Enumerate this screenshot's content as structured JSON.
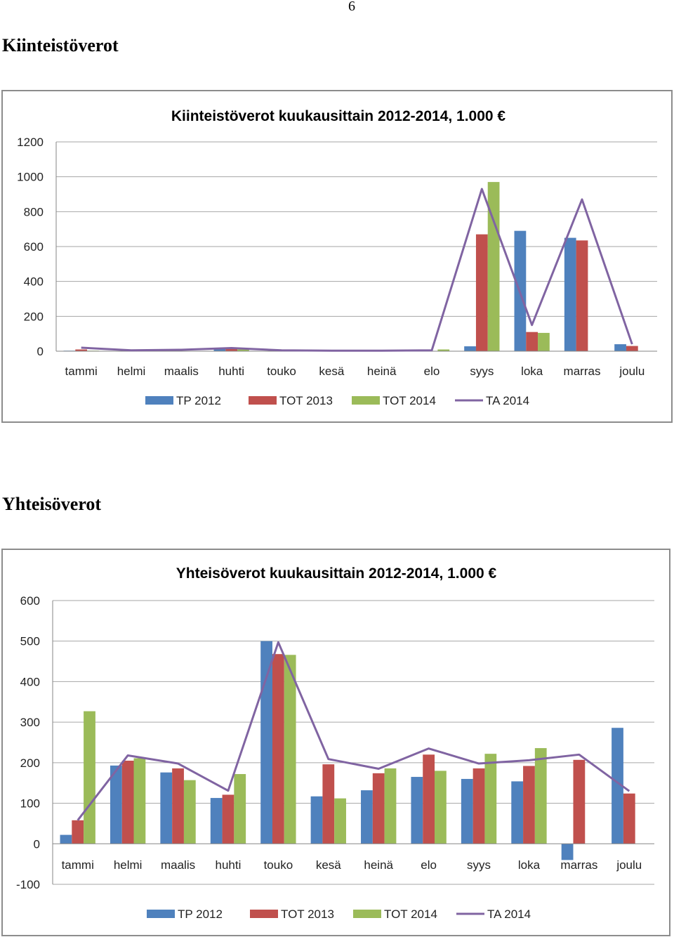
{
  "page_number": "6",
  "sections": [
    {
      "heading": "Kiinteistöverot"
    },
    {
      "heading": "Yhteisöverot"
    }
  ],
  "colors": {
    "TP 2012": "#4f81bd",
    "TOT 2013": "#c0504d",
    "TOT 2014": "#9bbb59",
    "TA 2014": "#8064a2",
    "grid": "#a6a6a6"
  },
  "chart_data": [
    {
      "type": "bar",
      "title": "Kiinteistöverot kuukausittain 2012-2014, 1.000 €",
      "categories": [
        "tammi",
        "helmi",
        "maalis",
        "huhti",
        "touko",
        "kesä",
        "heinä",
        "elo",
        "syys",
        "loka",
        "marras",
        "joulu"
      ],
      "ylim": [
        0,
        1200
      ],
      "yticks": [
        "0",
        "200",
        "400",
        "600",
        "800",
        "1000",
        "1200"
      ],
      "ytick_values": [
        0,
        200,
        400,
        600,
        800,
        1000,
        1200
      ],
      "grid": true,
      "legend": "bottom",
      "series": [
        {
          "name": "TP 2012",
          "kind": "bar",
          "values": [
            3,
            0,
            0,
            15,
            0,
            0,
            0,
            0,
            28,
            690,
            650,
            40
          ]
        },
        {
          "name": "TOT 2013",
          "kind": "bar",
          "values": [
            10,
            0,
            0,
            20,
            0,
            0,
            0,
            0,
            670,
            110,
            635,
            30
          ]
        },
        {
          "name": "TOT 2014",
          "kind": "bar",
          "values": [
            3,
            0,
            0,
            10,
            0,
            0,
            0,
            10,
            970,
            105,
            0,
            0
          ]
        },
        {
          "name": "TA 2014",
          "kind": "line",
          "values": [
            20,
            5,
            8,
            18,
            5,
            3,
            3,
            5,
            930,
            150,
            870,
            40
          ]
        }
      ]
    },
    {
      "type": "bar",
      "title": "Yhteisöverot kuukausittain 2012-2014, 1.000 €",
      "categories": [
        "tammi",
        "helmi",
        "maalis",
        "huhti",
        "touko",
        "kesä",
        "heinä",
        "elo",
        "syys",
        "loka",
        "marras",
        "joulu"
      ],
      "ylim": [
        -100,
        600
      ],
      "yticks": [
        "-100",
        "0",
        "100",
        "200",
        "300",
        "400",
        "500",
        "600"
      ],
      "ytick_values": [
        -100,
        0,
        100,
        200,
        300,
        400,
        500,
        600
      ],
      "grid": true,
      "legend": "bottom",
      "series": [
        {
          "name": "TP 2012",
          "kind": "bar",
          "values": [
            22,
            193,
            176,
            113,
            500,
            117,
            132,
            165,
            160,
            154,
            -40,
            286
          ]
        },
        {
          "name": "TOT 2013",
          "kind": "bar",
          "values": [
            58,
            205,
            186,
            121,
            468,
            196,
            174,
            220,
            186,
            192,
            207,
            124
          ]
        },
        {
          "name": "TOT 2014",
          "kind": "bar",
          "values": [
            327,
            211,
            157,
            172,
            466,
            112,
            186,
            180,
            222,
            236,
            0,
            0
          ]
        },
        {
          "name": "TA 2014",
          "kind": "line",
          "values": [
            58,
            218,
            198,
            131,
            497,
            209,
            185,
            235,
            198,
            206,
            220,
            130
          ]
        }
      ]
    }
  ]
}
